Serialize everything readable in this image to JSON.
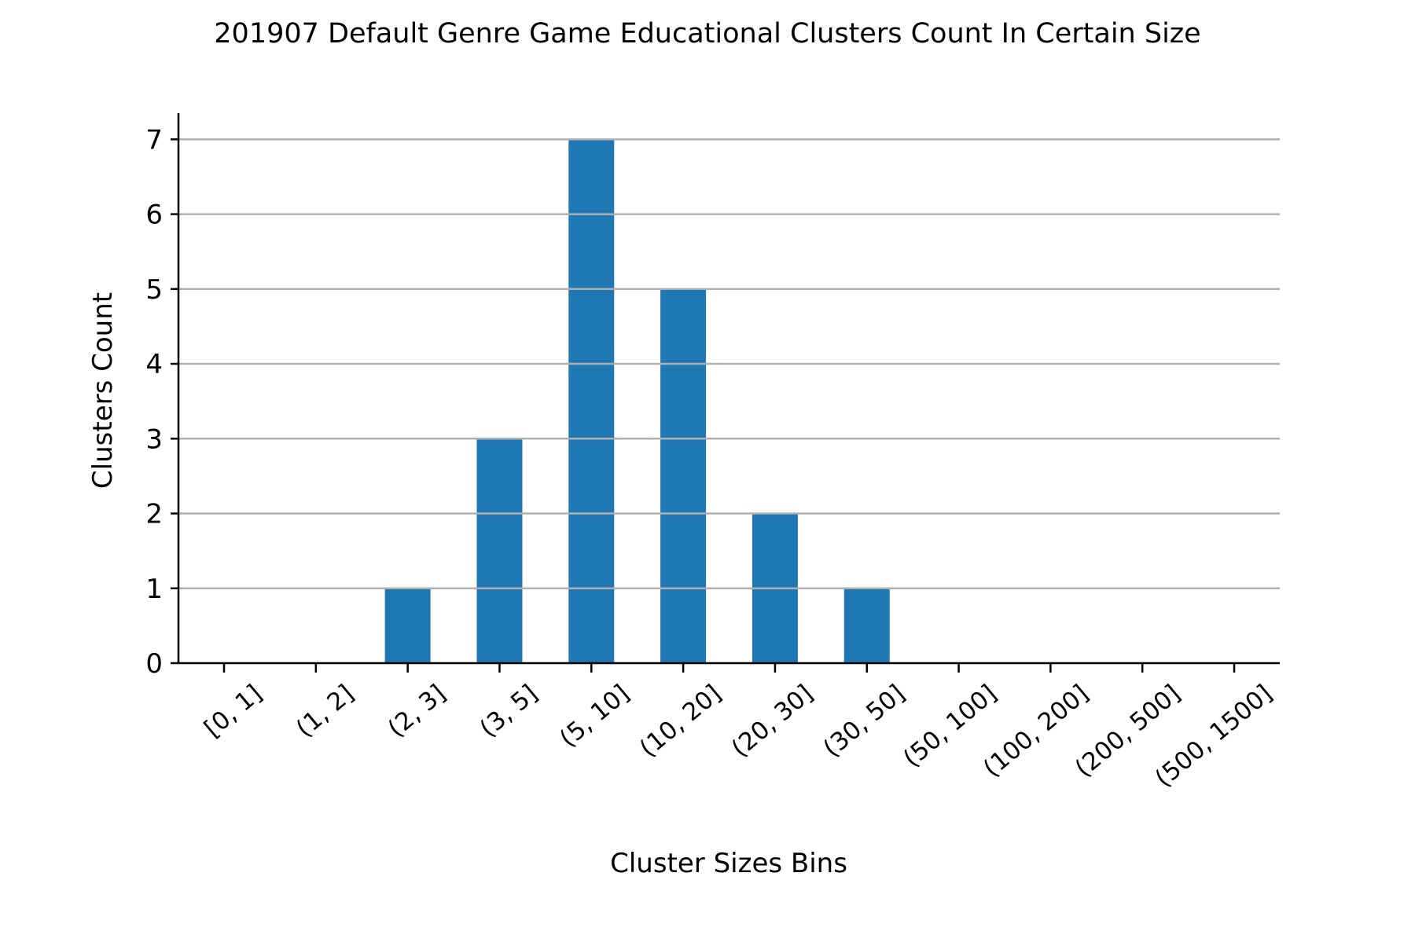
{
  "chart_data": {
    "type": "bar",
    "title": "201907 Default Genre Game Educational Clusters Count In Certain Size",
    "xlabel": "Cluster Sizes Bins",
    "ylabel": "Clusters Count",
    "categories": [
      "[0, 1]",
      "(1, 2]",
      "(2, 3]",
      "(3, 5]",
      "(5, 10]",
      "(10, 20]",
      "(20, 30]",
      "(30, 50]",
      "(50, 100]",
      "(100, 200]",
      "(200, 500]",
      "(500, 1500]"
    ],
    "values": [
      0,
      0,
      1,
      3,
      7,
      5,
      2,
      1,
      0,
      0,
      0,
      0
    ],
    "ylim": [
      0,
      7.35
    ],
    "yticks": [
      "0",
      "1",
      "2",
      "3",
      "4",
      "5",
      "6",
      "7"
    ],
    "grid": "horizontal",
    "bar_color": "#1f77b4",
    "grid_color": "#b0b0b0"
  }
}
